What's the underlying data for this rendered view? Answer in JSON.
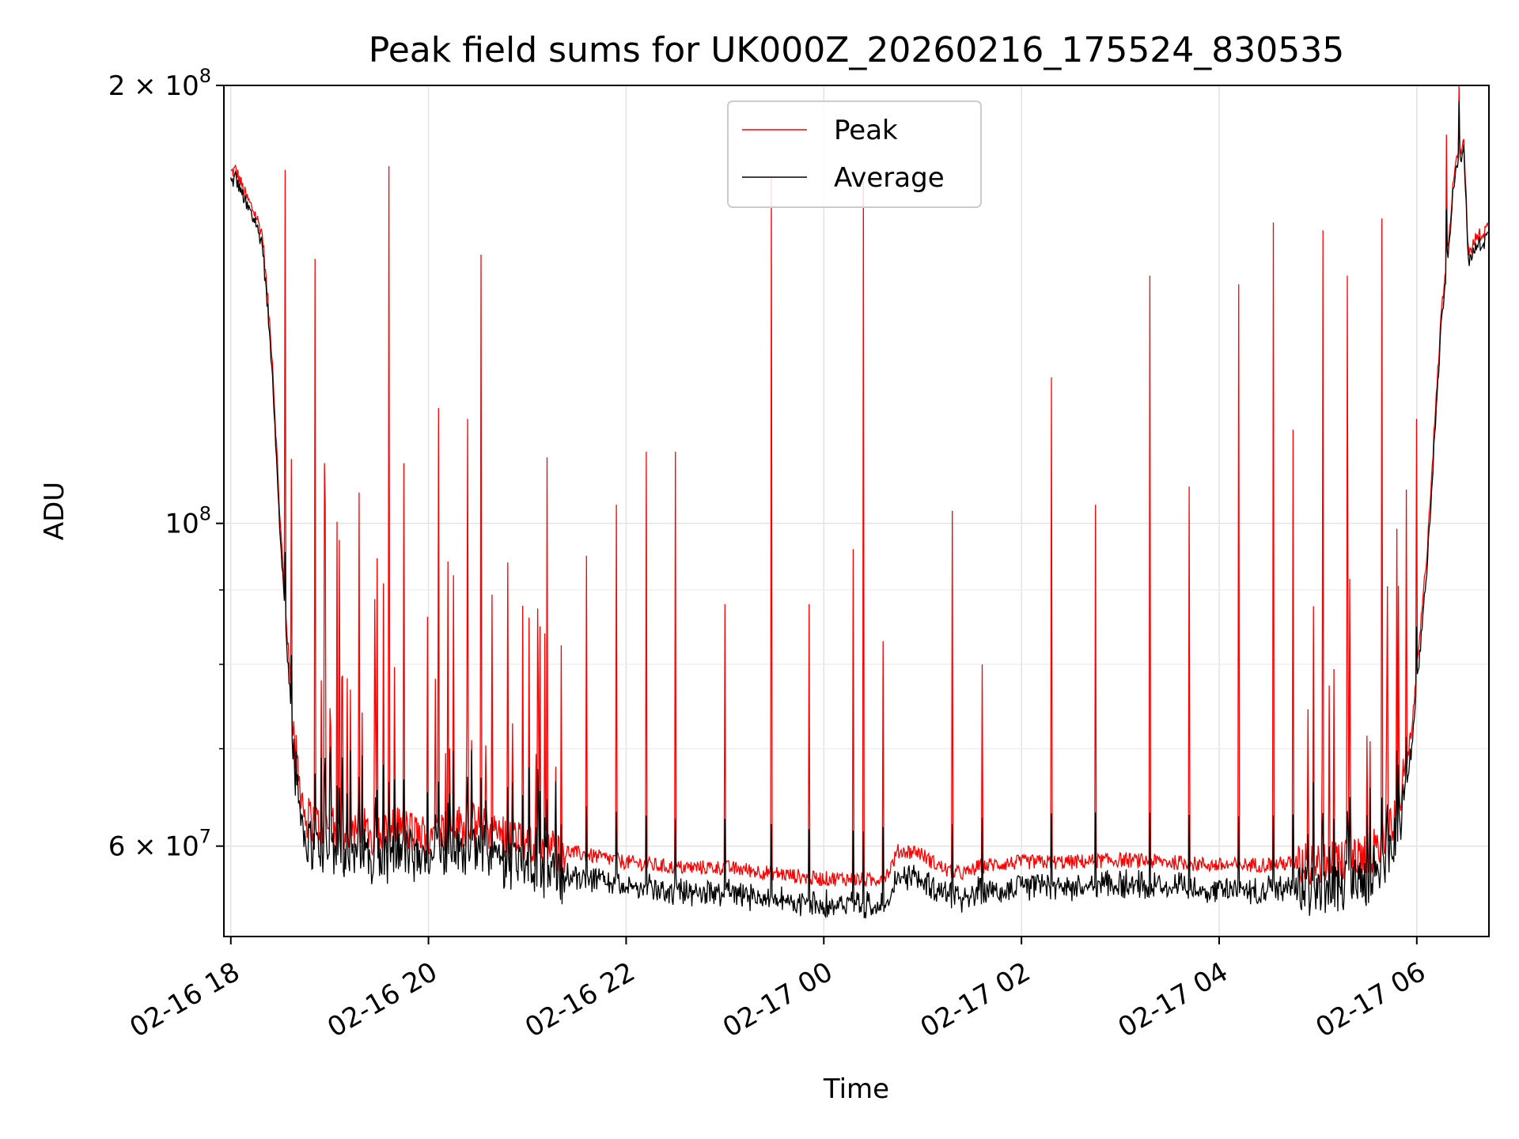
{
  "chart_data": {
    "type": "line",
    "title": "Peak field sums for UK000Z_20260216_175524_830535",
    "xlabel": "Time",
    "ylabel": "ADU",
    "yscale": "log",
    "ylim": [
      52000000,
      200000000
    ],
    "xlim_hours": [
      -0.07,
      12.73
    ],
    "x_unit": "hours since 2026-02-16 18:00",
    "grid": true,
    "legend_position": "top-center",
    "x_ticks": [
      {
        "hours": 0,
        "label": "02-16 18"
      },
      {
        "hours": 2,
        "label": "02-16 20"
      },
      {
        "hours": 4,
        "label": "02-16 22"
      },
      {
        "hours": 6,
        "label": "02-17 00"
      },
      {
        "hours": 8,
        "label": "02-17 02"
      },
      {
        "hours": 10,
        "label": "02-17 04"
      },
      {
        "hours": 12,
        "label": "02-17 06"
      }
    ],
    "y_major_ticks": [
      {
        "value": 60000000,
        "base": "6 × 10",
        "exp": "7"
      },
      {
        "value": 100000000,
        "base": "10",
        "exp": "8"
      },
      {
        "value": 200000000,
        "base": "2 × 10",
        "exp": "8"
      }
    ],
    "y_minor_ticks": [
      70000000,
      80000000,
      90000000
    ],
    "series": [
      {
        "name": "Peak",
        "color": "#ff0000",
        "baseline": {
          "hours": [
            -0.07,
            0.05,
            0.15,
            0.25,
            0.32,
            0.42,
            0.5,
            0.58,
            0.65,
            0.75,
            0.9,
            1.1,
            1.3,
            1.5,
            1.7,
            1.9,
            2.1,
            2.3,
            2.5,
            2.8,
            3.1,
            3.4,
            3.7,
            4.0,
            4.5,
            5.0,
            5.5,
            5.9,
            6.2,
            6.5,
            6.65,
            6.75,
            6.95,
            7.1,
            7.3,
            7.45,
            7.55,
            7.65,
            8.0,
            8.5,
            9.0,
            9.5,
            10.0,
            10.5,
            11.0,
            11.4,
            11.65,
            11.8,
            11.95,
            12.1,
            12.25,
            12.4,
            12.48,
            12.52,
            12.6,
            12.73
          ],
          "values": [
            173000000,
            175000000,
            168000000,
            163000000,
            158000000,
            130000000,
            100000000,
            82000000,
            70000000,
            63000000,
            62000000,
            61500000,
            62000000,
            61000000,
            62000000,
            61000000,
            61500000,
            62000000,
            62000000,
            61000000,
            60000000,
            59500000,
            59000000,
            58500000,
            58000000,
            58000000,
            57500000,
            57000000,
            57000000,
            56800000,
            57500000,
            59500000,
            59500000,
            58500000,
            57500000,
            57500000,
            58000000,
            58200000,
            58500000,
            58500000,
            58700000,
            58500000,
            58200000,
            58300000,
            58500000,
            58800000,
            60000000,
            63000000,
            72000000,
            95000000,
            140000000,
            180000000,
            182000000,
            153000000,
            157000000,
            160000000
          ]
        },
        "spikes": [
          {
            "hours": 0.55,
            "value": 175000000
          },
          {
            "hours": 0.85,
            "value": 152000000
          },
          {
            "hours": 0.95,
            "value": 110000000
          },
          {
            "hours": 1.3,
            "value": 105000000
          },
          {
            "hours": 1.6,
            "value": 176000000
          },
          {
            "hours": 1.75,
            "value": 110000000
          },
          {
            "hours": 2.1,
            "value": 120000000
          },
          {
            "hours": 2.4,
            "value": 118000000
          },
          {
            "hours": 2.53,
            "value": 153000000
          },
          {
            "hours": 2.8,
            "value": 94000000
          },
          {
            "hours": 3.2,
            "value": 111000000
          },
          {
            "hours": 3.6,
            "value": 95000000
          },
          {
            "hours": 3.9,
            "value": 103000000
          },
          {
            "hours": 4.2,
            "value": 112000000
          },
          {
            "hours": 4.5,
            "value": 112000000
          },
          {
            "hours": 5.0,
            "value": 88000000
          },
          {
            "hours": 5.47,
            "value": 173000000
          },
          {
            "hours": 5.85,
            "value": 88000000
          },
          {
            "hours": 6.3,
            "value": 96000000
          },
          {
            "hours": 6.4,
            "value": 172000000
          },
          {
            "hours": 6.6,
            "value": 83000000
          },
          {
            "hours": 7.3,
            "value": 102000000
          },
          {
            "hours": 7.6,
            "value": 80000000
          },
          {
            "hours": 8.3,
            "value": 126000000
          },
          {
            "hours": 8.75,
            "value": 103000000
          },
          {
            "hours": 9.3,
            "value": 148000000
          },
          {
            "hours": 9.7,
            "value": 106000000
          },
          {
            "hours": 10.2,
            "value": 146000000
          },
          {
            "hours": 10.55,
            "value": 161000000
          },
          {
            "hours": 10.75,
            "value": 116000000
          },
          {
            "hours": 11.05,
            "value": 159000000
          },
          {
            "hours": 11.3,
            "value": 148000000
          },
          {
            "hours": 11.65,
            "value": 162000000
          },
          {
            "hours": 12.0,
            "value": 118000000
          },
          {
            "hours": 12.3,
            "value": 185000000
          },
          {
            "hours": 12.43,
            "value": 200000000
          }
        ]
      },
      {
        "name": "Average",
        "color": "#000000",
        "offset_below_peak": 1500000
      }
    ]
  }
}
